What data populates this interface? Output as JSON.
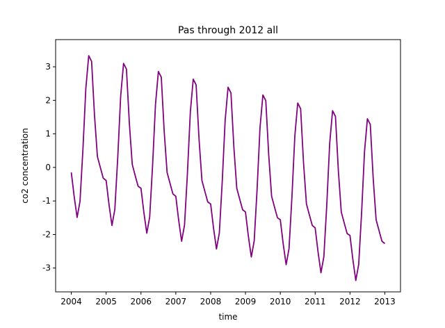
{
  "chart_data": {
    "type": "line",
    "title": "Pas through 2012 all",
    "xlabel": "time",
    "ylabel": "co2 concentration",
    "x": [
      2004.0,
      2004.083,
      2004.167,
      2004.25,
      2004.333,
      2004.417,
      2004.5,
      2004.583,
      2004.667,
      2004.75,
      2004.833,
      2004.917,
      2005.0,
      2005.083,
      2005.167,
      2005.25,
      2005.333,
      2005.417,
      2005.5,
      2005.583,
      2005.667,
      2005.75,
      2005.833,
      2005.917,
      2006.0,
      2006.083,
      2006.167,
      2006.25,
      2006.333,
      2006.417,
      2006.5,
      2006.583,
      2006.667,
      2006.75,
      2006.833,
      2006.917,
      2007.0,
      2007.083,
      2007.167,
      2007.25,
      2007.333,
      2007.417,
      2007.5,
      2007.583,
      2007.667,
      2007.75,
      2007.833,
      2007.917,
      2008.0,
      2008.083,
      2008.167,
      2008.25,
      2008.333,
      2008.417,
      2008.5,
      2008.583,
      2008.667,
      2008.75,
      2008.833,
      2008.917,
      2009.0,
      2009.083,
      2009.167,
      2009.25,
      2009.333,
      2009.417,
      2009.5,
      2009.583,
      2009.667,
      2009.75,
      2009.833,
      2009.917,
      2010.0,
      2010.083,
      2010.167,
      2010.25,
      2010.333,
      2010.417,
      2010.5,
      2010.583,
      2010.667,
      2010.75,
      2010.833,
      2010.917,
      2011.0,
      2011.083,
      2011.167,
      2011.25,
      2011.333,
      2011.417,
      2011.5,
      2011.583,
      2011.667,
      2011.75,
      2011.833,
      2011.917,
      2012.0,
      2012.083,
      2012.167,
      2012.25,
      2012.333,
      2012.417,
      2012.5,
      2012.583,
      2012.667,
      2012.75,
      2012.833,
      2012.917,
      2013.0
    ],
    "series": [
      {
        "name": "co2",
        "color": "#800080",
        "values": [
          -0.15,
          -0.87,
          -1.49,
          -1.01,
          0.52,
          2.35,
          3.33,
          3.16,
          1.54,
          0.32,
          0.0,
          -0.32,
          -0.39,
          -1.11,
          -1.73,
          -1.25,
          0.29,
          2.12,
          3.1,
          2.93,
          1.31,
          0.09,
          -0.24,
          -0.56,
          -0.62,
          -1.34,
          -1.96,
          -1.48,
          0.05,
          1.88,
          2.86,
          2.69,
          1.07,
          -0.15,
          -0.47,
          -0.79,
          -0.86,
          -1.58,
          -2.2,
          -1.72,
          -0.19,
          1.65,
          2.63,
          2.46,
          0.84,
          -0.39,
          -0.71,
          -1.03,
          -1.09,
          -1.81,
          -2.43,
          -1.95,
          -0.42,
          1.41,
          2.39,
          2.22,
          0.6,
          -0.62,
          -0.94,
          -1.26,
          -1.33,
          -2.05,
          -2.67,
          -2.19,
          -0.66,
          1.18,
          2.16,
          1.99,
          0.37,
          -0.86,
          -1.18,
          -1.5,
          -1.56,
          -2.28,
          -2.9,
          -2.42,
          -0.89,
          0.94,
          1.92,
          1.75,
          0.13,
          -1.09,
          -1.41,
          -1.73,
          -1.8,
          -2.52,
          -3.14,
          -2.66,
          -1.13,
          0.71,
          1.69,
          1.52,
          -0.11,
          -1.33,
          -1.65,
          -1.97,
          -2.03,
          -2.75,
          -3.37,
          -2.89,
          -1.36,
          0.47,
          1.45,
          1.28,
          -0.34,
          -1.56,
          -1.88,
          -2.2,
          -2.27
        ]
      }
    ],
    "xlim": [
      2003.55,
      2013.45
    ],
    "xticks": [
      2004,
      2005,
      2006,
      2007,
      2008,
      2009,
      2010,
      2011,
      2012,
      2013
    ],
    "ylim": [
      -3.71,
      3.81
    ],
    "yticks": [
      -3,
      -2,
      -1,
      0,
      1,
      2,
      3
    ],
    "grid": false
  }
}
